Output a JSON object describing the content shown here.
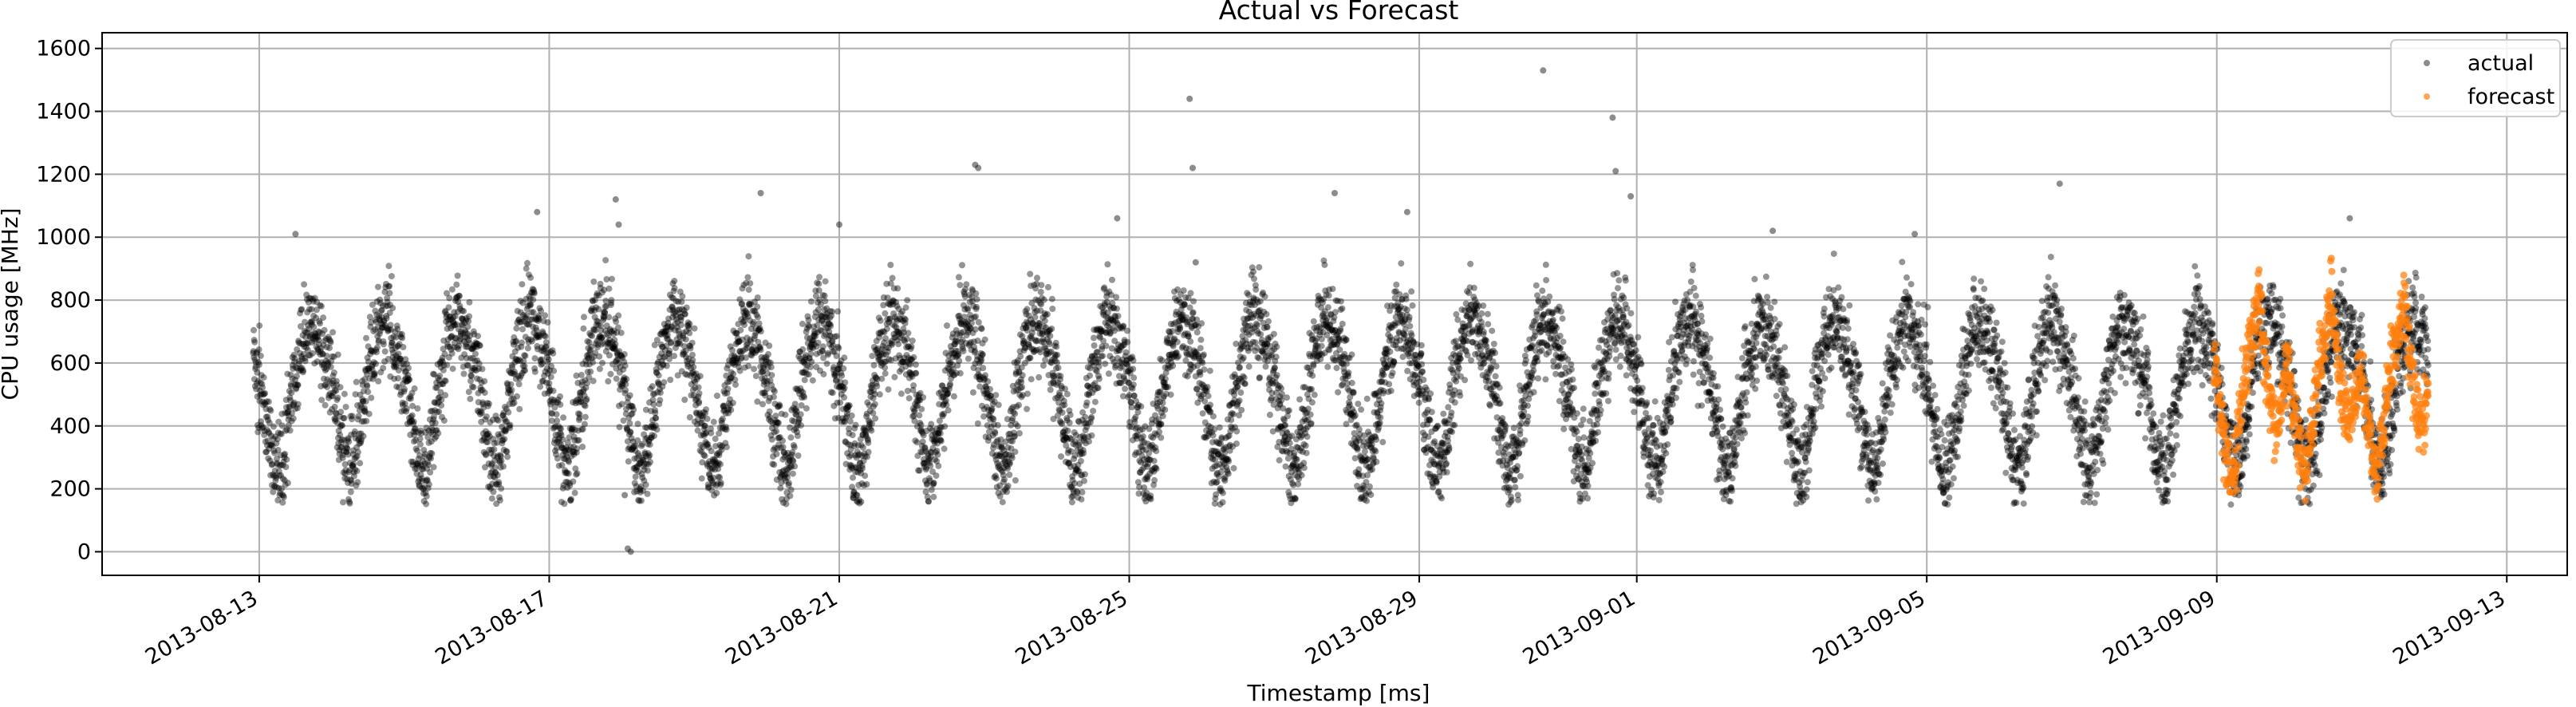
{
  "chart_data": {
    "type": "scatter",
    "title": "Actual vs Forecast",
    "xlabel": "Timestamp [ms]",
    "ylabel": "CPU usage [MHz]",
    "x_range": [
      "2013-08-10T20:00",
      "2013-09-13T20:00"
    ],
    "ylim": [
      -75,
      1650
    ],
    "yticks": [
      0,
      200,
      400,
      600,
      800,
      1000,
      1200,
      1400,
      1600
    ],
    "xticks": [
      "2013-08-13",
      "2013-08-17",
      "2013-08-21",
      "2013-08-25",
      "2013-08-29",
      "2013-09-01",
      "2013-09-05",
      "2013-09-09",
      "2013-09-13"
    ],
    "grid": true,
    "legend_position": "top-right",
    "series": [
      {
        "name": "actual",
        "color": "#000000",
        "marker": "dot",
        "start": "2013-08-12T22:00",
        "end": "2013-09-11T22:00",
        "pattern": "daily",
        "profile_hour": [
          0,
          1,
          2,
          3,
          4,
          5,
          6,
          7,
          8,
          9,
          10,
          11,
          12,
          13,
          14,
          15,
          16,
          17,
          18,
          19,
          20,
          21,
          22,
          23
        ],
        "profile_mhz": [
          560,
          500,
          440,
          380,
          320,
          280,
          260,
          270,
          300,
          360,
          430,
          500,
          560,
          610,
          650,
          690,
          720,
          740,
          730,
          710,
          690,
          660,
          630,
          590
        ],
        "outliers": [
          {
            "x": "2013-08-13T12:00",
            "y": 1010
          },
          {
            "x": "2013-08-16T20:00",
            "y": 1080
          },
          {
            "x": "2013-08-17T22:00",
            "y": 1120
          },
          {
            "x": "2013-08-17T23:00",
            "y": 1040
          },
          {
            "x": "2013-08-18T02:00",
            "y": 10
          },
          {
            "x": "2013-08-18T03:00",
            "y": 0
          },
          {
            "x": "2013-08-18T01:00",
            "y": 180
          },
          {
            "x": "2013-08-19T22:00",
            "y": 1140
          },
          {
            "x": "2013-08-21T00:00",
            "y": 1040
          },
          {
            "x": "2013-08-22T21:00",
            "y": 1230
          },
          {
            "x": "2013-08-22T22:00",
            "y": 1220
          },
          {
            "x": "2013-08-24T20:00",
            "y": 1060
          },
          {
            "x": "2013-08-25T20:00",
            "y": 1440
          },
          {
            "x": "2013-08-25T21:00",
            "y": 1220
          },
          {
            "x": "2013-08-25T22:00",
            "y": 920
          },
          {
            "x": "2013-08-27T20:00",
            "y": 1140
          },
          {
            "x": "2013-08-28T20:00",
            "y": 1080
          },
          {
            "x": "2013-08-30T17:00",
            "y": 1530
          },
          {
            "x": "2013-08-31T16:00",
            "y": 1380
          },
          {
            "x": "2013-08-31T17:00",
            "y": 1210
          },
          {
            "x": "2013-08-31T22:00",
            "y": 1130
          },
          {
            "x": "2013-09-02T21:00",
            "y": 1020
          },
          {
            "x": "2013-09-04T20:00",
            "y": 1010
          },
          {
            "x": "2013-09-06T20:00",
            "y": 1170
          },
          {
            "x": "2013-09-10T20:00",
            "y": 1060
          }
        ]
      },
      {
        "name": "forecast",
        "color": "#ff7f0e",
        "marker": "dot",
        "start": "2013-09-08T23:00",
        "end": "2013-09-11T22:00",
        "pattern": "daily",
        "profile_hour": [
          0,
          1,
          2,
          3,
          4,
          5,
          6,
          7,
          8,
          9,
          10,
          11,
          12,
          13,
          14,
          15,
          16,
          17,
          18,
          19,
          20,
          21,
          22,
          23
        ],
        "profile_mhz": [
          560,
          480,
          400,
          330,
          280,
          250,
          300,
          380,
          470,
          560,
          620,
          650,
          690,
          760,
          800,
          700,
          600,
          520,
          470,
          430,
          400,
          450,
          520,
          580
        ]
      }
    ]
  }
}
